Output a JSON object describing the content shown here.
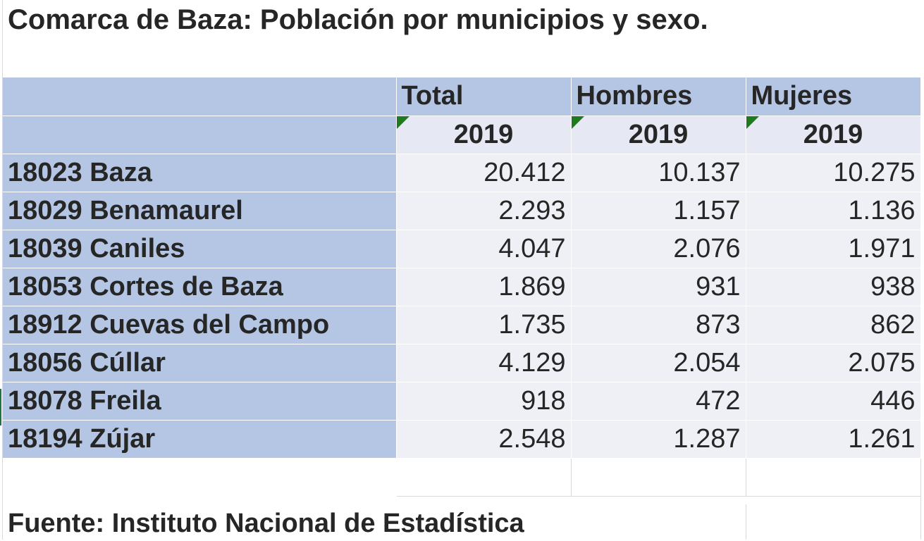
{
  "title": "Comarca de Baza: Población por municipios y sexo.",
  "columns": {
    "total": "Total",
    "hombres": "Hombres",
    "mujeres": "Mujeres"
  },
  "years": {
    "total": "2019",
    "hombres": "2019",
    "mujeres": "2019"
  },
  "rows": [
    {
      "municipio": "18023 Baza",
      "total": "20.412",
      "hombres": "10.137",
      "mujeres": "10.275"
    },
    {
      "municipio": "18029 Benamaurel",
      "total": "2.293",
      "hombres": "1.157",
      "mujeres": "1.136"
    },
    {
      "municipio": "18039 Caniles",
      "total": "4.047",
      "hombres": "2.076",
      "mujeres": "1.971"
    },
    {
      "municipio": "18053 Cortes de Baza",
      "total": "1.869",
      "hombres": "931",
      "mujeres": "938"
    },
    {
      "municipio": "18912 Cuevas del Campo",
      "total": "1.735",
      "hombres": "873",
      "mujeres": "862"
    },
    {
      "municipio": "18056 Cúllar",
      "total": "4.129",
      "hombres": "2.054",
      "mujeres": "2.075"
    },
    {
      "municipio": "18078 Freila",
      "total": "918",
      "hombres": "472",
      "mujeres": "446"
    },
    {
      "municipio": "18194 Zújar",
      "total": "2.548",
      "hombres": "1.287",
      "mujeres": "1.261"
    }
  ],
  "source": "Fuente: Instituto Nacional de Estadística",
  "colors": {
    "header_blue": "#b4c6e3",
    "value_cell": "#eef0f6",
    "year_cell": "#e6e9f3",
    "error_indicator": "#1f7a1f"
  }
}
